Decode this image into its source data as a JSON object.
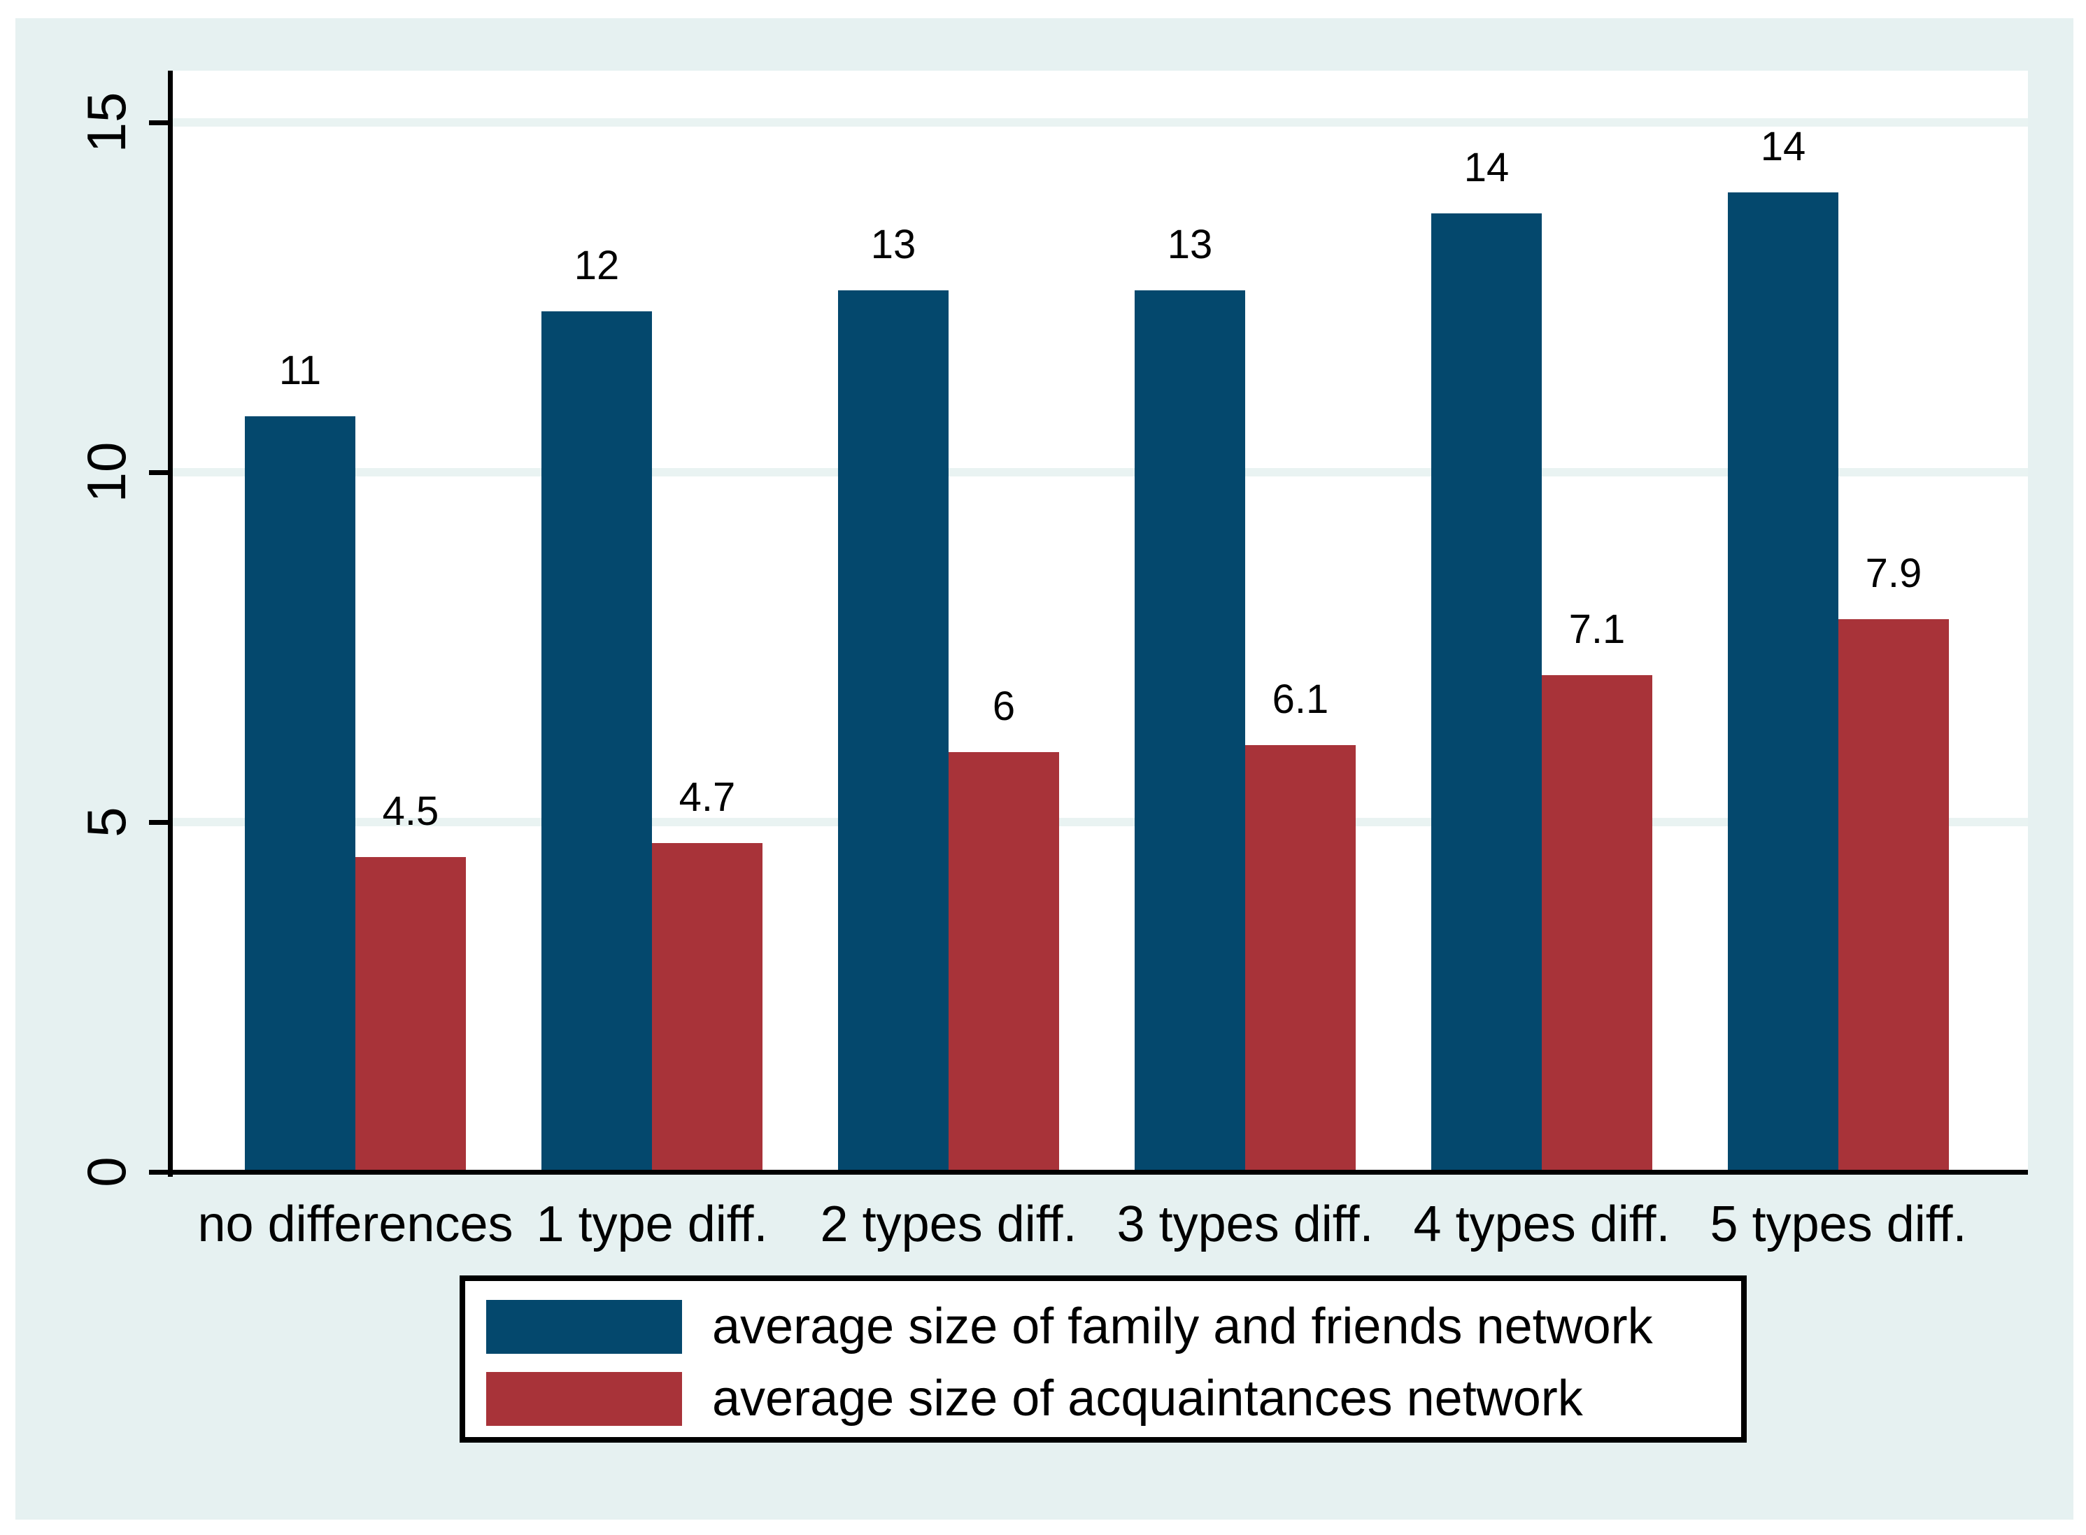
{
  "figure": {
    "page_background": "#ffffff",
    "canvas_background": "#e6f1f1",
    "plot_background": "#ffffff",
    "gridline_color": "#e9f3f2",
    "axis_color": "#000000",
    "text_color": "#000000"
  },
  "chart_data": {
    "type": "bar",
    "title": "",
    "xlabel": "",
    "ylabel": "",
    "categories": [
      "no differences",
      "1 type diff.",
      "2 types diff.",
      "3 types diff.",
      "4 types diff.",
      "5 types diff."
    ],
    "series": [
      {
        "name": "average size of family and friends network",
        "color": "#04486d",
        "values": [
          10.8,
          12.3,
          12.6,
          12.6,
          13.7,
          14.0
        ],
        "bar_labels": [
          "11",
          "12",
          "13",
          "13",
          "14",
          "14"
        ]
      },
      {
        "name": "average size of acquaintances network",
        "color": "#a83339",
        "values": [
          4.5,
          4.7,
          6.0,
          6.1,
          7.1,
          7.9
        ],
        "bar_labels": [
          "4.5",
          "4.7",
          "6",
          "6.1",
          "7.1",
          "7.9"
        ]
      }
    ],
    "y_ticks": [
      0,
      5,
      10,
      15
    ],
    "y_tick_labels": [
      "0",
      "5",
      "10",
      "15"
    ],
    "ylim": [
      0,
      15.7
    ],
    "grid": true,
    "legend_position": "bottom-center"
  }
}
